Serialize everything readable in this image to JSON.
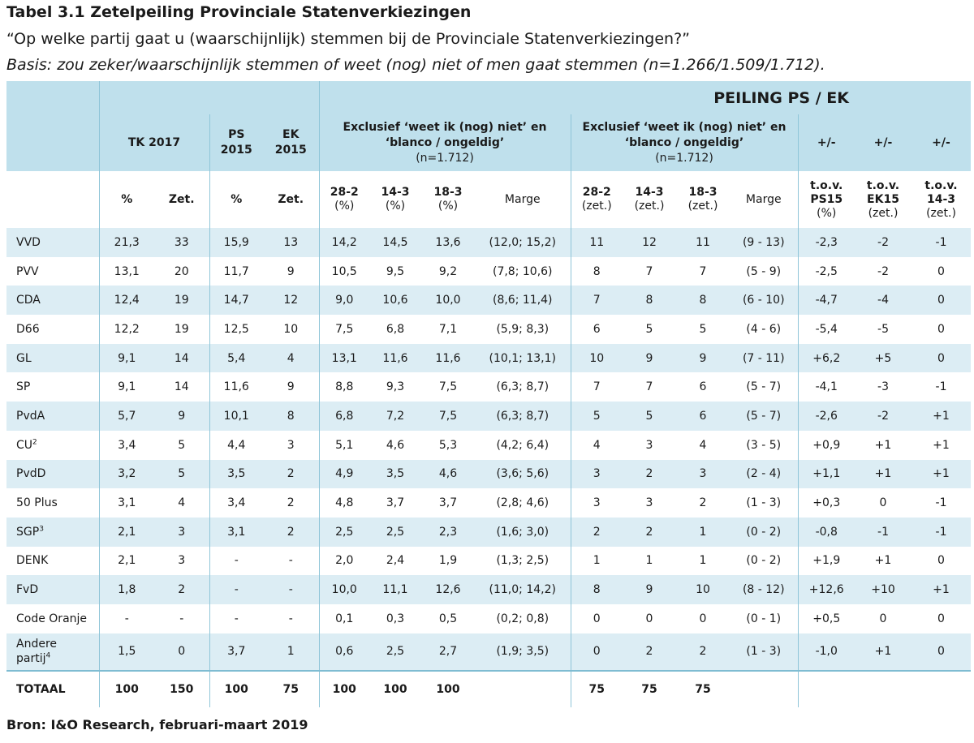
{
  "title": "Tabel 3.1 Zetelpeiling Provinciale Statenverkiezingen",
  "question": "“Op welke partij gaat u (waarschijnlijk) stemmen bij de Provinciale Statenverkiezingen?”",
  "basis": "Basis: zou zeker/waarschijnlijk stemmen of weet (nog) niet of men gaat stemmen (n=1.266/1.509/1.712).",
  "header": {
    "peiling": "PEILING PS / EK",
    "tk2017": "TK 2017",
    "ps2015_a": "PS",
    "ps2015_b": "2015",
    "ek2015_a": "EK",
    "ek2015_b": "2015",
    "excl_pct_a": "Exclusief ‘weet ik (nog) niet’ en",
    "excl_pct_b": "‘blanco / ongeldig’",
    "excl_pct_n": "(n=1.712)",
    "excl_zet_a": "Exclusief ‘weet ik (nog) niet’ en",
    "excl_zet_b": "‘blanco / ongeldig’",
    "excl_zet_n": "(n=1.712)",
    "diff1": "+/-",
    "diff2": "+/-",
    "diff3": "+/-",
    "pct": "%",
    "zet": "Zet.",
    "pct2": "%",
    "zet2": "Zet.",
    "d1": "28-2",
    "d1u": "(%)",
    "d2": "14-3",
    "d2u": "(%)",
    "d3": "18-3",
    "d3u": "(%)",
    "marge": "Marge",
    "z1": "28-2",
    "z1u": "(zet.)",
    "z2": "14-3",
    "z2u": "(zet.)",
    "z3": "18-3",
    "z3u": "(zet.)",
    "marge2": "Marge",
    "t1a": "t.o.v.",
    "t1b": "PS15",
    "t1c": "(%)",
    "t2a": "t.o.v.",
    "t2b": "EK15",
    "t2c": "(zet.)",
    "t3a": "t.o.v.",
    "t3b": "14-3",
    "t3c": "(zet.)"
  },
  "rows": [
    {
      "party": "VVD",
      "sup": "",
      "v": [
        "21,3",
        "33",
        "15,9",
        "13",
        "14,2",
        "14,5",
        "13,6",
        "(12,0; 15,2)",
        "11",
        "12",
        "11",
        "(9 - 13)",
        "-2,3",
        "-2",
        "-1"
      ]
    },
    {
      "party": "PVV",
      "sup": "",
      "v": [
        "13,1",
        "20",
        "11,7",
        "9",
        "10,5",
        "9,5",
        "9,2",
        "(7,8; 10,6)",
        "8",
        "7",
        "7",
        "(5 - 9)",
        "-2,5",
        "-2",
        "0"
      ]
    },
    {
      "party": "CDA",
      "sup": "",
      "v": [
        "12,4",
        "19",
        "14,7",
        "12",
        "9,0",
        "10,6",
        "10,0",
        "(8,6; 11,4)",
        "7",
        "8",
        "8",
        "(6 - 10)",
        "-4,7",
        "-4",
        "0"
      ]
    },
    {
      "party": "D66",
      "sup": "",
      "v": [
        "12,2",
        "19",
        "12,5",
        "10",
        "7,5",
        "6,8",
        "7,1",
        "(5,9; 8,3)",
        "6",
        "5",
        "5",
        "(4 - 6)",
        "-5,4",
        "-5",
        "0"
      ]
    },
    {
      "party": "GL",
      "sup": "",
      "v": [
        "9,1",
        "14",
        "5,4",
        "4",
        "13,1",
        "11,6",
        "11,6",
        "(10,1; 13,1)",
        "10",
        "9",
        "9",
        "(7 - 11)",
        "+6,2",
        "+5",
        "0"
      ]
    },
    {
      "party": "SP",
      "sup": "",
      "v": [
        "9,1",
        "14",
        "11,6",
        "9",
        "8,8",
        "9,3",
        "7,5",
        "(6,3; 8,7)",
        "7",
        "7",
        "6",
        "(5 - 7)",
        "-4,1",
        "-3",
        "-1"
      ]
    },
    {
      "party": "PvdA",
      "sup": "",
      "v": [
        "5,7",
        "9",
        "10,1",
        "8",
        "6,8",
        "7,2",
        "7,5",
        "(6,3; 8,7)",
        "5",
        "5",
        "6",
        "(5 - 7)",
        "-2,6",
        "-2",
        "+1"
      ]
    },
    {
      "party": "CU",
      "sup": "2",
      "v": [
        "3,4",
        "5",
        "4,4",
        "3",
        "5,1",
        "4,6",
        "5,3",
        "(4,2; 6,4)",
        "4",
        "3",
        "4",
        "(3 - 5)",
        "+0,9",
        "+1",
        "+1"
      ]
    },
    {
      "party": "PvdD",
      "sup": "",
      "v": [
        "3,2",
        "5",
        "3,5",
        "2",
        "4,9",
        "3,5",
        "4,6",
        "(3,6; 5,6)",
        "3",
        "2",
        "3",
        "(2 - 4)",
        "+1,1",
        "+1",
        "+1"
      ]
    },
    {
      "party": "50 Plus",
      "sup": "",
      "v": [
        "3,1",
        "4",
        "3,4",
        "2",
        "4,8",
        "3,7",
        "3,7",
        "(2,8; 4,6)",
        "3",
        "3",
        "2",
        "(1 - 3)",
        "+0,3",
        "0",
        "-1"
      ]
    },
    {
      "party": "SGP",
      "sup": "3",
      "v": [
        "2,1",
        "3",
        "3,1",
        "2",
        "2,5",
        "2,5",
        "2,3",
        "(1,6; 3,0)",
        "2",
        "2",
        "1",
        "(0 - 2)",
        "-0,8",
        "-1",
        "-1"
      ]
    },
    {
      "party": "DENK",
      "sup": "",
      "v": [
        "2,1",
        "3",
        "-",
        "-",
        "2,0",
        "2,4",
        "1,9",
        "(1,3; 2,5)",
        "1",
        "1",
        "1",
        "(0 - 2)",
        "+1,9",
        "+1",
        "0"
      ]
    },
    {
      "party": "FvD",
      "sup": "",
      "v": [
        "1,8",
        "2",
        "-",
        "-",
        "10,0",
        "11,1",
        "12,6",
        "(11,0; 14,2)",
        "8",
        "9",
        "10",
        "(8 - 12)",
        "+12,6",
        "+10",
        "+1"
      ]
    },
    {
      "party": "Code Oranje",
      "sup": "",
      "v": [
        "-",
        "-",
        "-",
        "-",
        "0,1",
        "0,3",
        "0,5",
        "(0,2; 0,8)",
        "0",
        "0",
        "0",
        "(0 - 1)",
        "+0,5",
        "0",
        "0"
      ]
    }
  ],
  "andere": {
    "party_a": "Andere",
    "party_b": "partij",
    "sup": "4",
    "v": [
      "1,5",
      "0",
      "3,7",
      "1",
      "0,6",
      "2,5",
      "2,7",
      "(1,9; 3,5)",
      "0",
      "2",
      "2",
      "(1 - 3)",
      "-1,0",
      "+1",
      "0"
    ]
  },
  "total": {
    "label": "TOTAAL",
    "v": [
      "100",
      "150",
      "100",
      "75",
      "100",
      "100",
      "100",
      "",
      "75",
      "75",
      "75",
      "",
      "",
      "",
      ""
    ]
  },
  "source": "Bron: I&O Research, februari-maart 2019",
  "colors": {
    "header_bg": "#bfe0ec",
    "row_alt": "#dcedf4",
    "separator": "#8fc5d8"
  }
}
